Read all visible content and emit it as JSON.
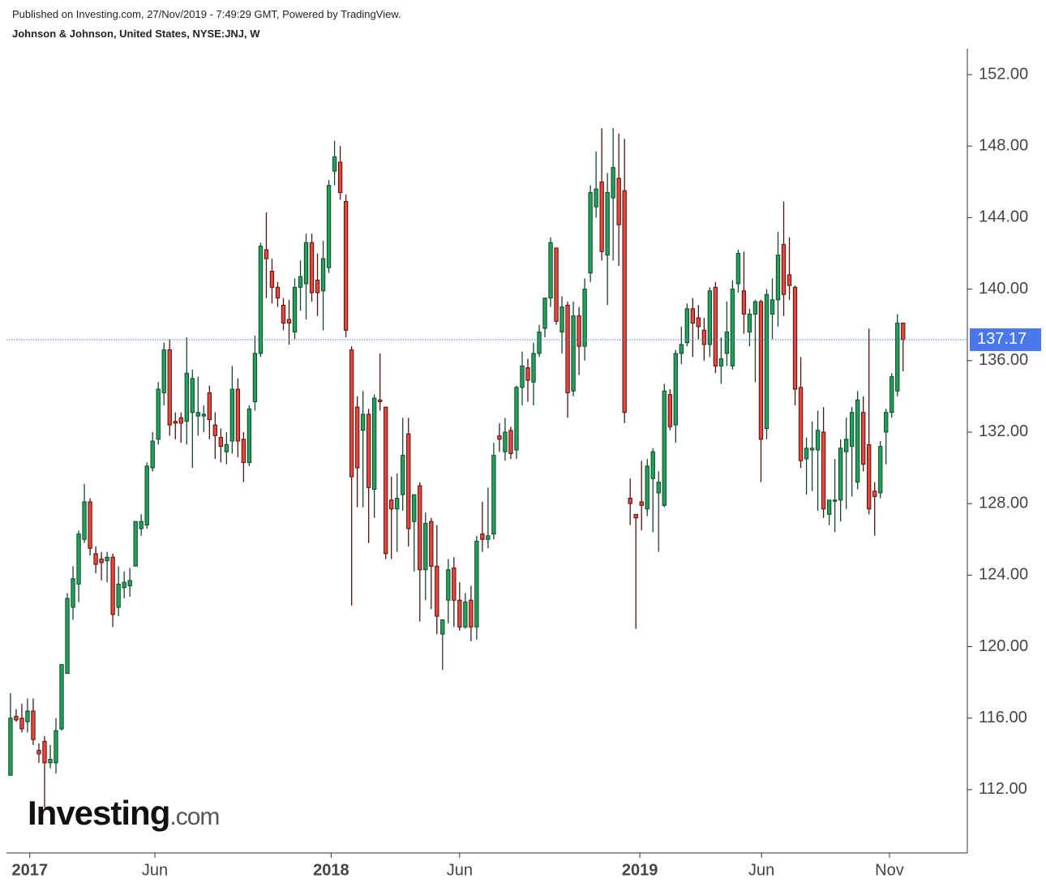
{
  "chart_data": {
    "type": "candlestick",
    "published": "Published on Investing.com, 27/Nov/2019 - 7:49:29 GMT, Powered by TradingView.",
    "title": "Johnson & Johnson, United States, NYSE:JNJ, W",
    "logo_main": "Investing",
    "logo_suffix": ".com",
    "open": [
      112.8,
      116.1,
      116.0,
      115.8,
      116.4,
      114.2,
      114.7,
      113.5,
      113.5,
      115.4,
      118.5,
      122.2,
      123.5,
      126.0,
      128.1,
      125.2,
      124.9,
      124.8,
      125.0,
      122.2,
      123.3,
      123.4,
      124.5,
      126.6,
      126.8,
      130.0,
      131.6,
      134.2,
      136.6,
      132.6,
      132.8,
      132.6,
      133.1,
      132.9,
      132.9,
      134.2,
      132.4,
      131.7,
      130.9,
      131.5,
      134.4,
      131.6,
      130.3,
      133.7,
      136.4,
      142.2,
      141.0,
      140.1,
      139.1,
      138.3,
      137.6,
      140.1,
      140.3,
      142.6,
      140.5,
      139.9,
      141.2,
      146.6,
      147.1,
      144.9,
      136.6,
      133.4,
      132.1,
      133.0,
      128.8,
      133.8,
      133.4,
      128.2,
      127.7,
      128.5,
      131.9,
      127.0,
      129.0,
      124.3,
      127.0,
      124.5,
      120.7,
      122.6,
      124.4,
      122.6,
      121.1,
      122.6,
      121.1,
      126.3,
      126.0,
      126.3,
      131.8,
      130.9,
      132.1,
      131.0,
      134.5,
      135.6,
      134.8,
      136.4,
      137.8,
      139.5,
      142.3,
      137.6,
      139.1,
      134.3,
      138.5,
      136.8,
      140.9,
      144.6,
      146.0,
      141.9,
      145.1,
      146.2,
      145.5,
      128.3,
      127.4,
      128.1,
      127.7,
      129.4,
      128.6,
      127.9,
      134.1,
      132.4,
      136.4,
      137.0,
      138.9,
      138.4,
      137.7,
      136.9,
      140.1,
      135.7,
      136.4,
      135.7,
      140.3,
      139.9,
      137.6,
      138.6,
      139.3,
      132.2,
      138.6,
      139.4,
      142.5,
      140.8,
      140.1,
      134.5,
      130.5,
      131.0,
      131.0,
      132.0,
      127.4,
      128.2,
      128.2,
      130.9,
      131.2,
      129.2,
      133.1,
      131.3,
      128.7,
      128.6,
      132.0,
      133.1,
      134.3,
      138.1
    ],
    "high": [
      117.4,
      116.5,
      116.8,
      117.1,
      117.1,
      114.6,
      115.0,
      114.5,
      116.0,
      119.0,
      123.0,
      124.5,
      126.5,
      129.1,
      128.3,
      125.6,
      125.3,
      125.3,
      125.2,
      124.5,
      124.2,
      124.4,
      127.0,
      127.4,
      130.3,
      132.0,
      134.8,
      137.0,
      137.2,
      133.1,
      133.1,
      137.3,
      135.5,
      135.1,
      133.5,
      134.6,
      133.1,
      132.2,
      132.0,
      135.7,
      135.0,
      132.0,
      133.5,
      137.4,
      142.6,
      144.3,
      141.7,
      140.4,
      139.5,
      139.4,
      140.6,
      141.6,
      143.1,
      143.1,
      142.0,
      142.7,
      146.1,
      148.3,
      148.0,
      145.3,
      136.8,
      134.0,
      134.3,
      133.3,
      134.1,
      136.4,
      133.4,
      129.5,
      129.7,
      132.8,
      132.8,
      128.5,
      129.2,
      127.5,
      127.2,
      126.8,
      121.4,
      124.9,
      125.0,
      123.6,
      123.0,
      123.4,
      126.2,
      128.1,
      128.9,
      131.4,
      132.5,
      132.8,
      132.3,
      134.6,
      136.5,
      136.1,
      137.0,
      138.0,
      139.5,
      142.9,
      142.3,
      139.6,
      139.3,
      139.3,
      139.0,
      140.6,
      145.8,
      147.7,
      149.0,
      146.5,
      149.0,
      148.7,
      148.4,
      129.4,
      127.4,
      130.4,
      130.5,
      131.1,
      129.8,
      134.7,
      134.4,
      136.6,
      137.9,
      139.2,
      139.5,
      139.1,
      138.4,
      140.1,
      140.4,
      137.3,
      139.3,
      140.5,
      142.2,
      142.1,
      138.9,
      139.4,
      139.4,
      140.0,
      140.6,
      143.2,
      144.9,
      142.9,
      140.2,
      136.2,
      131.7,
      132.6,
      133.2,
      133.4,
      128.2,
      130.5,
      131.6,
      132.8,
      133.4,
      134.3,
      134.0,
      137.8,
      129.2,
      131.5,
      133.3,
      135.3,
      138.6,
      138.1
    ],
    "low": [
      112.8,
      115.8,
      115.2,
      115.2,
      114.5,
      113.5,
      111.0,
      113.2,
      112.9,
      115.3,
      118.5,
      121.5,
      122.5,
      125.8,
      125.1,
      124.1,
      123.7,
      123.6,
      121.1,
      121.7,
      122.7,
      122.8,
      124.5,
      126.2,
      126.6,
      129.8,
      131.3,
      133.5,
      131.8,
      131.6,
      131.4,
      131.3,
      130.0,
      131.8,
      132.0,
      131.6,
      130.5,
      130.3,
      130.2,
      130.8,
      130.6,
      129.2,
      130.1,
      133.2,
      136.2,
      139.5,
      139.2,
      139.0,
      137.7,
      136.9,
      137.2,
      138.8,
      138.3,
      139.3,
      138.5,
      137.7,
      140.9,
      145.8,
      145.0,
      137.3,
      122.3,
      127.8,
      127.8,
      125.8,
      127.2,
      133.2,
      124.9,
      124.9,
      125.3,
      127.6,
      125.6,
      124.2,
      121.4,
      122.6,
      122.1,
      120.7,
      118.7,
      121.3,
      121.1,
      120.9,
      121.0,
      120.3,
      120.4,
      125.3,
      125.5,
      126.0,
      130.9,
      130.4,
      130.5,
      130.5,
      133.5,
      133.7,
      133.5,
      136.2,
      137.3,
      139.0,
      138.0,
      136.4,
      132.8,
      134.0,
      135.2,
      136.0,
      140.4,
      144.0,
      141.6,
      139.1,
      141.6,
      141.3,
      132.5,
      126.8,
      121.0,
      126.5,
      127.3,
      126.4,
      125.3,
      127.8,
      132.1,
      131.4,
      135.8,
      136.8,
      136.2,
      137.2,
      136.0,
      136.2,
      135.3,
      134.7,
      135.7,
      135.5,
      139.8,
      137.5,
      136.8,
      134.8,
      129.2,
      131.6,
      137.2,
      137.9,
      138.5,
      139.4,
      133.5,
      130.0,
      128.5,
      128.7,
      127.6,
      127.2,
      126.8,
      126.4,
      127.0,
      127.7,
      128.4,
      128.8,
      129.8,
      127.4,
      126.2,
      128.3,
      130.2,
      132.8,
      134.0,
      135.4
    ],
    "close": [
      116.0,
      115.9,
      115.4,
      116.4,
      114.8,
      114.0,
      113.5,
      113.7,
      115.3,
      119.0,
      122.7,
      123.8,
      126.3,
      128.1,
      125.5,
      124.6,
      124.7,
      125.0,
      121.8,
      123.5,
      123.6,
      123.7,
      127.0,
      127.0,
      130.1,
      131.5,
      134.4,
      136.6,
      132.4,
      132.5,
      132.5,
      135.3,
      135.0,
      133.1,
      133.0,
      132.7,
      131.8,
      131.2,
      131.3,
      134.4,
      131.5,
      130.3,
      133.3,
      136.4,
      142.4,
      141.7,
      140.1,
      139.5,
      138.1,
      138.1,
      140.1,
      140.7,
      142.6,
      139.8,
      139.8,
      141.7,
      145.8,
      147.4,
      145.4,
      137.7,
      129.5,
      130.0,
      133.0,
      128.9,
      133.9,
      133.7,
      125.2,
      127.7,
      128.3,
      130.7,
      126.6,
      128.5,
      124.3,
      126.9,
      124.5,
      121.7,
      121.5,
      124.3,
      122.6,
      121.1,
      122.5,
      121.1,
      125.9,
      126.0,
      126.2,
      130.7,
      131.6,
      132.0,
      130.8,
      134.5,
      135.7,
      134.9,
      136.4,
      137.6,
      139.5,
      142.6,
      138.2,
      139.0,
      134.2,
      138.5,
      136.8,
      140.0,
      145.4,
      145.6,
      142.1,
      145.4,
      146.8,
      143.6,
      133.1,
      128.0,
      127.2,
      127.9,
      130.1,
      130.9,
      129.2,
      134.3,
      132.3,
      136.4,
      136.9,
      138.9,
      138.1,
      137.9,
      136.9,
      139.9,
      135.7,
      136.1,
      137.6,
      140.0,
      142.0,
      138.6,
      138.6,
      139.3,
      131.6,
      139.7,
      139.4,
      141.9,
      139.7,
      140.2,
      134.4,
      130.4,
      131.1,
      131.1,
      132.1,
      127.7,
      128.2,
      128.2,
      131.1,
      131.6,
      133.1,
      133.8,
      130.2,
      127.7,
      128.4,
      131.2,
      133.1,
      135.1,
      138.1,
      137.17
    ],
    "up_color": "#1fa35c",
    "up_border": "#14462a",
    "down_color": "#e8463d",
    "down_border": "#4d1512",
    "last_price": 137.17,
    "last_price_color": "#4a78e8",
    "ylim": [
      108.46,
      153.45
    ],
    "yticks": [
      {
        "value": 112,
        "label": "112.00"
      },
      {
        "value": 116,
        "label": "116.00"
      },
      {
        "value": 120,
        "label": "120.00"
      },
      {
        "value": 124,
        "label": "124.00"
      },
      {
        "value": 128,
        "label": "128.00"
      },
      {
        "value": 132,
        "label": "132.00"
      },
      {
        "value": 136,
        "label": "136.00"
      },
      {
        "value": 140,
        "label": "140.00"
      },
      {
        "value": 144,
        "label": "144.00"
      },
      {
        "value": 148,
        "label": "148.00"
      },
      {
        "value": 152,
        "label": "152.00"
      }
    ],
    "xlim": [
      -0.7,
      168.3
    ],
    "xticks": [
      {
        "value": 3.4,
        "label": "2017"
      },
      {
        "value": 25.4,
        "label": "Jun"
      },
      {
        "value": 56.4,
        "label": "2018"
      },
      {
        "value": 79.0,
        "label": "Jun"
      },
      {
        "value": 110.7,
        "label": "2019"
      },
      {
        "value": 132.1,
        "label": "Jun"
      },
      {
        "value": 154.6,
        "label": "Nov"
      }
    ]
  }
}
